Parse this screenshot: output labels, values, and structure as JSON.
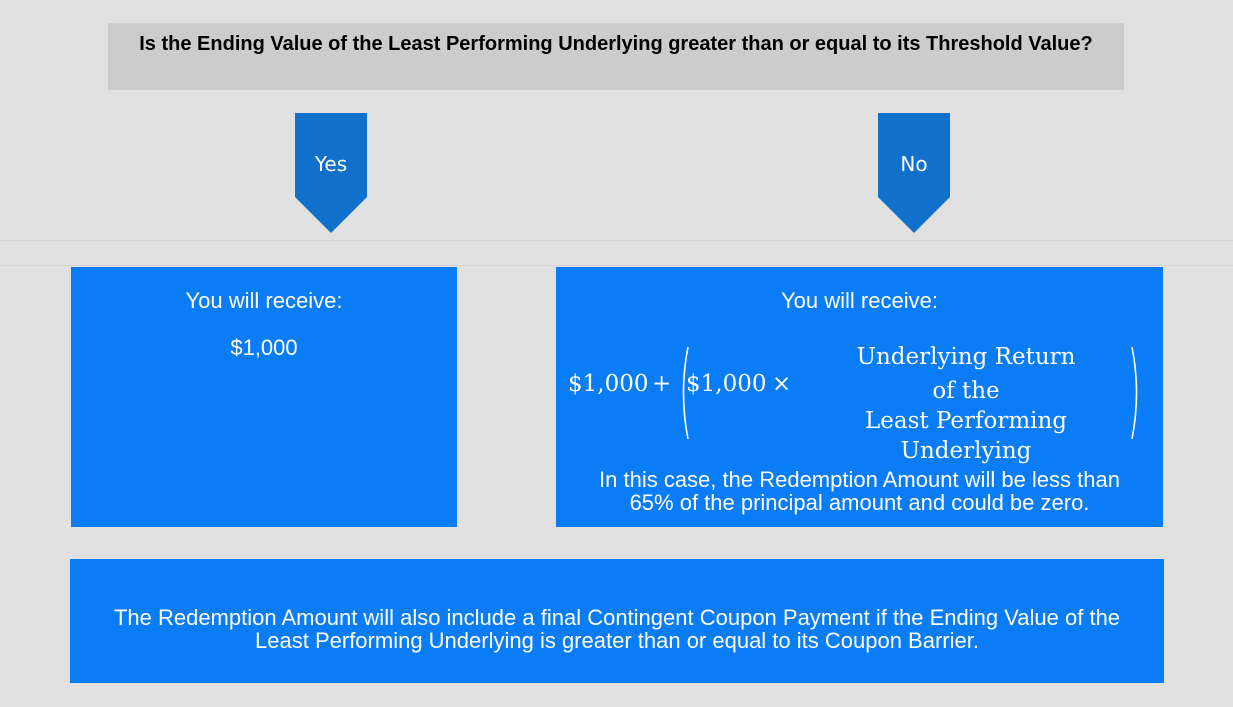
{
  "question": "Is the Ending Value of the Least Performing Underlying greater than or equal to its Threshold Value?",
  "branches": {
    "yes": {
      "label": "Yes",
      "heading": "You will receive:",
      "amount": "$1,000"
    },
    "no": {
      "label": "No",
      "heading": "You will receive:",
      "formula": {
        "base": "$1,000",
        "plus": "+",
        "inner_base": "$1,000",
        "times": "×",
        "factor_line1": "Underlying Return",
        "factor_line2": "of the",
        "factor_line3": "Least Performing Underlying"
      },
      "note": "In this case, the Redemption Amount will be less than 65% of the principal amount and could be zero."
    }
  },
  "footer": "The Redemption Amount will also include a final Contingent Coupon Payment if the Ending Value of the Least Performing Underlying is greater than or equal to its Coupon Barrier.",
  "colors": {
    "background": "#e1e1e1",
    "question_box": "#cccccc",
    "arrow": "#1170cc",
    "panel": "#0a7cf5",
    "text_on_panel": "#ffffff"
  }
}
